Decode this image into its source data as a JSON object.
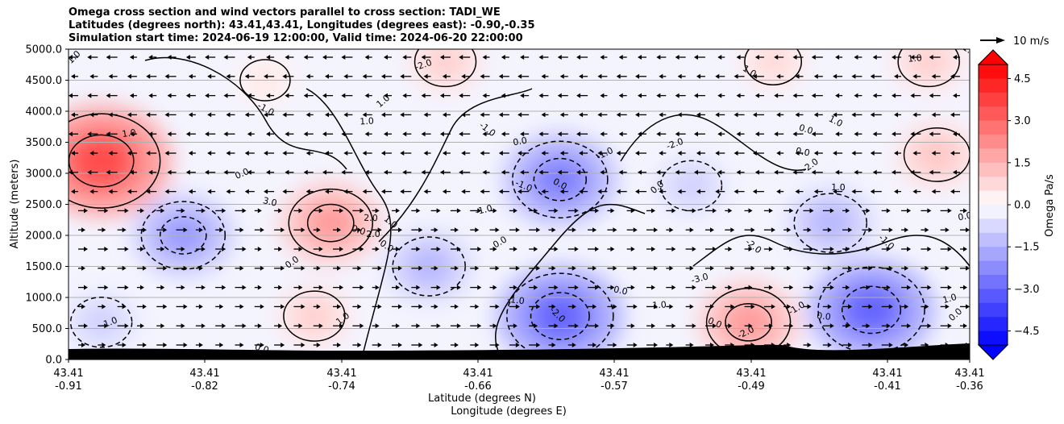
{
  "title": {
    "line1": "Omega cross section and wind vectors parallel to cross section: TADI_WE",
    "line2": "Latitudes (degrees north): 43.41,43.41, Longitudes (degrees east): -0.90,-0.35",
    "line3": "Simulation start time: 2024-06-19 12:00:00, Valid time: 2024-06-20 22:00:00"
  },
  "chart_data": {
    "type": "heatmap",
    "xlabel_lat": "Latitude (degrees N)",
    "xlabel_lon": "Longitude (degrees E)",
    "ylabel": "Altitude (meters)",
    "ylim": [
      0,
      5000
    ],
    "y_ticks": [
      "0.0",
      "500.0",
      "1000.0",
      "1500.0",
      "2000.0",
      "2500.0",
      "3000.0",
      "3500.0",
      "4000.0",
      "4500.0",
      "5000.0"
    ],
    "x_ticks": [
      {
        "lat": "43.41",
        "lon": "-0.91"
      },
      {
        "lat": "43.41",
        "lon": "-0.82"
      },
      {
        "lat": "43.41",
        "lon": "-0.74"
      },
      {
        "lat": "43.41",
        "lon": "-0.66"
      },
      {
        "lat": "43.41",
        "lon": "-0.57"
      },
      {
        "lat": "43.41",
        "lon": "-0.49"
      },
      {
        "lat": "43.41",
        "lon": "-0.41"
      },
      {
        "lat": "43.41",
        "lon": "-0.36"
      }
    ],
    "grid": "horizontal",
    "colorbar": {
      "label": "Omega Pa/s",
      "ticks": [
        "4.5",
        "3.0",
        "1.5",
        "0.0",
        "−1.5",
        "−3.0",
        "−4.5"
      ],
      "range": [
        -5,
        5
      ],
      "extend": "both",
      "colormap": "bwr"
    },
    "quiver_key": {
      "label": "10 m/s"
    },
    "contour_labels": [
      "-1.0",
      "1.0",
      "-1.0",
      "0.0",
      "3.0",
      "1.0",
      "1.0",
      "0.0",
      "-2.0",
      "0.0",
      "0.0",
      "2.0",
      "1.0",
      "-1.0",
      "-1.0",
      "0.0",
      "-1.0",
      "-2.0",
      "0.0",
      "0.0",
      "-1.0",
      "0.0",
      "0.0",
      "1.0",
      "1.0",
      "-2.0",
      "0.0",
      "-2.0",
      "1.0",
      "-2.0",
      "-3.0",
      "0.0",
      "-1.0",
      "0.0",
      "-1.0",
      "0.0",
      "1.0",
      "-2.0",
      "0.0",
      "0.0",
      "1.0",
      "1.0",
      "-1.0",
      "0.0",
      "1.0",
      "2.0",
      "-1.0",
      "1.0"
    ],
    "omega_centers": [
      {
        "lon": -0.89,
        "alt": 3200,
        "value": 3.5
      },
      {
        "lon": -0.84,
        "alt": 2000,
        "value": -2.0
      },
      {
        "lon": -0.89,
        "alt": 600,
        "value": -1.0
      },
      {
        "lon": -0.75,
        "alt": 2200,
        "value": 2.0
      },
      {
        "lon": -0.76,
        "alt": 700,
        "value": 1.0
      },
      {
        "lon": -0.79,
        "alt": 4500,
        "value": 0.5
      },
      {
        "lon": -0.69,
        "alt": 1500,
        "value": -1.5
      },
      {
        "lon": -0.68,
        "alt": 4800,
        "value": 1.0
      },
      {
        "lon": -0.61,
        "alt": 2900,
        "value": -2.5
      },
      {
        "lon": -0.61,
        "alt": 700,
        "value": -3.0
      },
      {
        "lon": -0.53,
        "alt": 2800,
        "value": -1.0
      },
      {
        "lon": -0.495,
        "alt": 600,
        "value": 2.0
      },
      {
        "lon": -0.42,
        "alt": 800,
        "value": -3.0
      },
      {
        "lon": -0.445,
        "alt": 2200,
        "value": -1.5
      },
      {
        "lon": -0.38,
        "alt": 3300,
        "value": 1.2
      },
      {
        "lon": -0.385,
        "alt": 4800,
        "value": 1.0
      },
      {
        "lon": -0.48,
        "alt": 4800,
        "value": 0.8
      }
    ]
  }
}
